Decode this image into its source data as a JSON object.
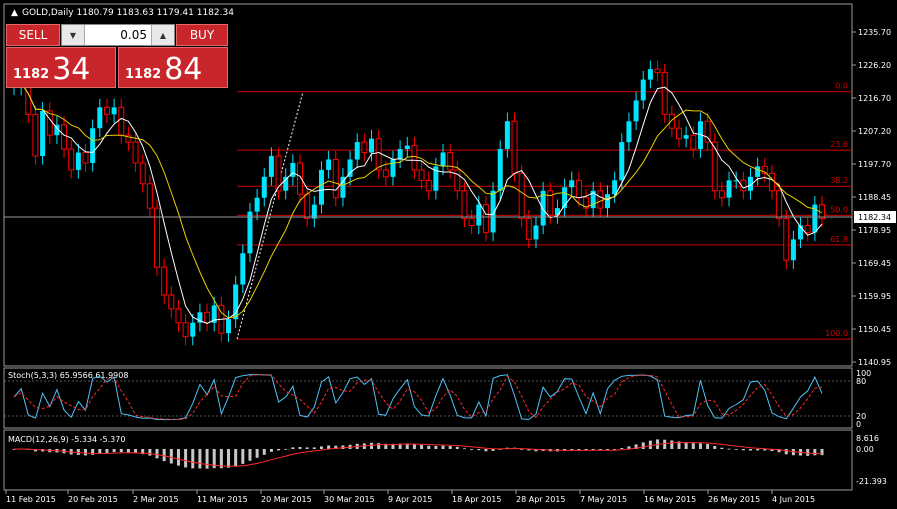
{
  "symbol_header": "GOLD,Daily  1180.79 1183.63 1179.41 1182.34",
  "trade_panel": {
    "sell_label": "SELL",
    "buy_label": "BUY",
    "lot_value": "0.05",
    "sell_small": "1182",
    "sell_big": "34",
    "buy_small": "1182",
    "buy_big": "84"
  },
  "price_axis": {
    "labels": [
      "1235.70",
      "1226.20",
      "1216.70",
      "1207.20",
      "1197.70",
      "1188.45",
      "1178.95",
      "1169.45",
      "1159.95",
      "1150.45",
      "1140.95"
    ],
    "current_price": "1182.34"
  },
  "fib_levels": [
    {
      "label": "0.0",
      "price": 1218.5
    },
    {
      "label": "23.6",
      "price": 1201.7
    },
    {
      "label": "38.2",
      "price": 1191.3
    },
    {
      "label": "50.0",
      "price": 1182.9
    },
    {
      "label": "61.8",
      "price": 1174.4
    },
    {
      "label": "100.0",
      "price": 1147.3
    }
  ],
  "stoch": {
    "label": "Stoch(5,3,3) 65.9566 61.9908",
    "levels": [
      "100",
      "80",
      "20",
      "0"
    ]
  },
  "macd": {
    "label": "MACD(12,26,9) -5.334 -5.370",
    "levels": [
      "8.616",
      "0.00",
      "-21.393"
    ]
  },
  "time_axis": [
    "11 Feb 2015",
    "20 Feb 2015",
    "2 Mar 2015",
    "11 Mar 2015",
    "20 Mar 2015",
    "30 Mar 2015",
    "9 Apr 2015",
    "18 Apr 2015",
    "28 Apr 2015",
    "7 May 2015",
    "16 May 2015",
    "26 May 2015",
    "4 Jun 2015"
  ],
  "colors": {
    "bull": "#00e5ff",
    "bear": "#ff0000",
    "ma_fast": "#ffffff",
    "ma_slow": "#e8d000",
    "fib": "#d00000",
    "panel_red": "#c8262b"
  }
}
